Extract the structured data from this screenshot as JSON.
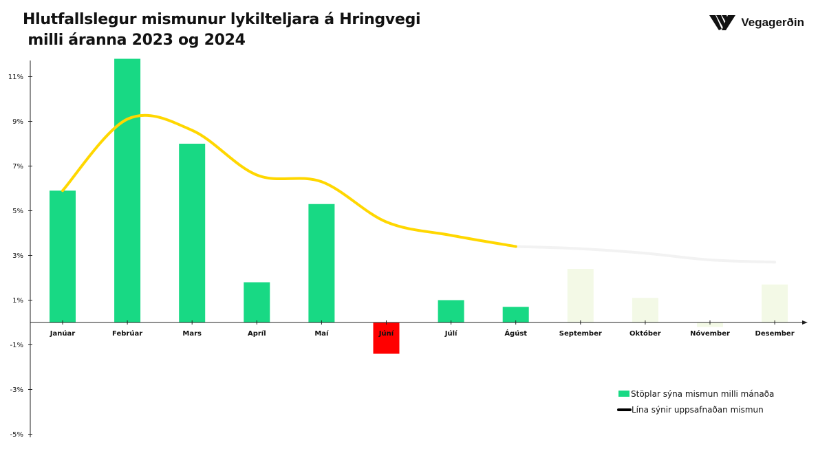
{
  "header": {
    "title": "Hlutfallslegur mismunur lykilteljara á Hringvegi\n milli áranna 2023 og 2024",
    "brand": "Vegagerðin"
  },
  "colors": {
    "positive": "#18d984",
    "negative": "#ff0000",
    "future": "#f3f9e6",
    "line": "#ffd700",
    "line_future": "#f2f2f2",
    "axis": "#222222"
  },
  "chart_data": {
    "type": "bar",
    "title": "Hlutfallslegur mismunur lykilteljara á Hringvegi milli áranna 2023 og 2024",
    "categories": [
      "Janúar",
      "Febrúar",
      "Mars",
      "Apríl",
      "Maí",
      "Júní",
      "Júlí",
      "Ágúst",
      "September",
      "Október",
      "Nóvember",
      "Desember"
    ],
    "y_ticks": [
      "11%",
      "9%",
      "7%",
      "5%",
      "3%",
      "1%",
      "-1%",
      "-3%",
      "-5%"
    ],
    "ylim": [
      -5,
      12
    ],
    "grid": false,
    "series": [
      {
        "name": "Stöplar sýna mismun milli mánaða",
        "type": "bar",
        "values": [
          5.9,
          11.8,
          8.0,
          1.8,
          5.3,
          -1.4,
          1.0,
          0.7,
          2.4,
          1.1,
          -0.2,
          1.7
        ]
      },
      {
        "name": "Lína sýnir uppsafnaðan mismun",
        "type": "line",
        "values": [
          5.9,
          9.1,
          8.6,
          6.6,
          6.3,
          4.5,
          3.9,
          3.4,
          3.3,
          3.1,
          2.8,
          2.7
        ]
      }
    ],
    "actual_months": 8,
    "legend_position": "bottom-right"
  }
}
